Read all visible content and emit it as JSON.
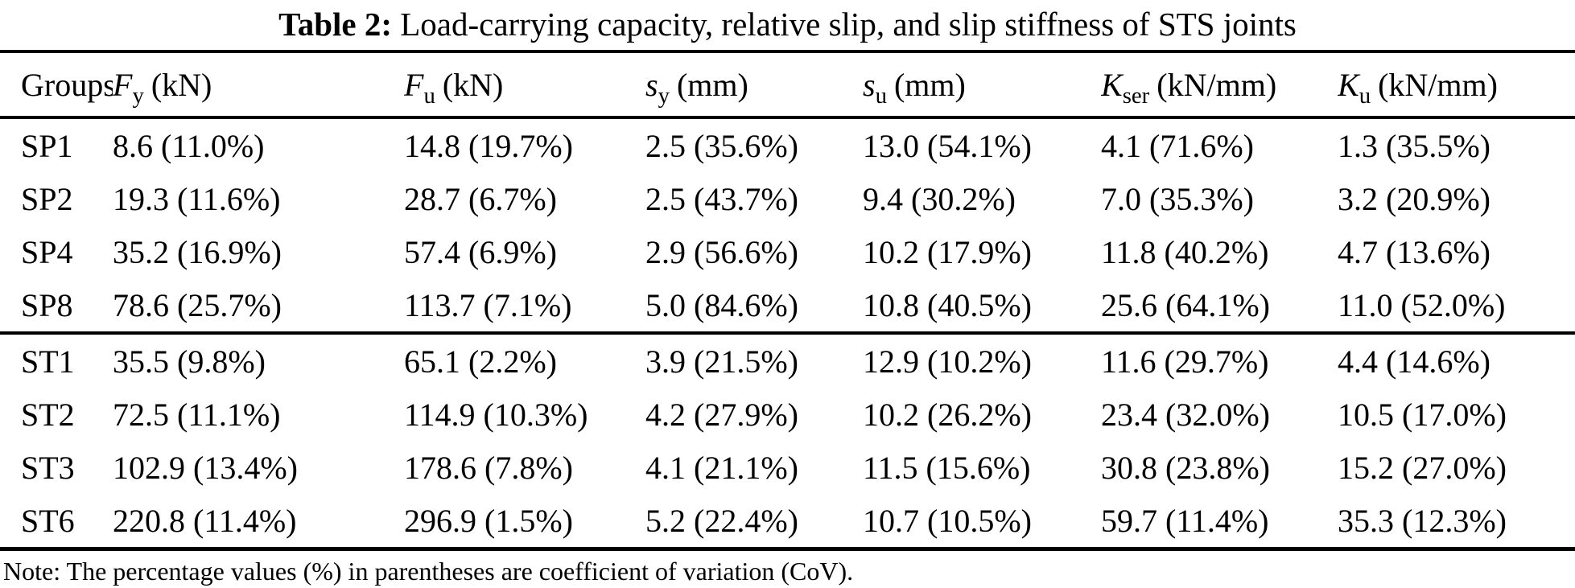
{
  "title": {
    "bold": "Table 2:",
    "rest": "Load-carrying capacity, relative slip, and slip stiffness of STS joints"
  },
  "table": {
    "headers": [
      {
        "label": "Groups"
      },
      {
        "sym": "F",
        "sub": "y",
        "unit": "(kN)"
      },
      {
        "sym": "F",
        "sub": "u",
        "unit": "(kN)"
      },
      {
        "sym": "s",
        "sub": "y",
        "unit": "(mm)"
      },
      {
        "sym": "s",
        "sub": "u",
        "unit": "(mm)"
      },
      {
        "sym": "K",
        "sub": "ser",
        "unit": "(kN/mm)"
      },
      {
        "sym": "K",
        "sub": "u",
        "unit": "(kN/mm)"
      }
    ],
    "rows": [
      {
        "group": "SP1",
        "cells": [
          "8.6 (11.0%)",
          "14.8 (19.7%)",
          "2.5 (35.6%)",
          "13.0 (54.1%)",
          "4.1 (71.6%)",
          "1.3 (35.5%)"
        ]
      },
      {
        "group": "SP2",
        "cells": [
          "19.3 (11.6%)",
          "28.7 (6.7%)",
          "2.5 (43.7%)",
          "9.4 (30.2%)",
          "7.0 (35.3%)",
          "3.2 (20.9%)"
        ]
      },
      {
        "group": "SP4",
        "cells": [
          "35.2 (16.9%)",
          "57.4 (6.9%)",
          "2.9 (56.6%)",
          "10.2 (17.9%)",
          "11.8 (40.2%)",
          "4.7 (13.6%)"
        ]
      },
      {
        "group": "SP8",
        "cells": [
          "78.6 (25.7%)",
          "113.7 (7.1%)",
          "5.0 (84.6%)",
          "10.8 (40.5%)",
          "25.6 (64.1%)",
          "11.0 (52.0%)"
        ]
      },
      {
        "group": "ST1",
        "cells": [
          "35.5 (9.8%)",
          "65.1 (2.2%)",
          "3.9 (21.5%)",
          "12.9 (10.2%)",
          "11.6 (29.7%)",
          "4.4 (14.6%)"
        ]
      },
      {
        "group": "ST2",
        "cells": [
          "72.5 (11.1%)",
          "114.9 (10.3%)",
          "4.2 (27.9%)",
          "10.2 (26.2%)",
          "23.4 (32.0%)",
          "10.5 (17.0%)"
        ]
      },
      {
        "group": "ST3",
        "cells": [
          "102.9 (13.4%)",
          "178.6 (7.8%)",
          "4.1 (21.1%)",
          "11.5 (15.6%)",
          "30.8 (23.8%)",
          "15.2 (27.0%)"
        ]
      },
      {
        "group": "ST6",
        "cells": [
          "220.8 (11.4%)",
          "296.9 (1.5%)",
          "5.2 (22.4%)",
          "10.7 (10.5%)",
          "59.7 (11.4%)",
          "35.3 (12.3%)"
        ]
      }
    ]
  },
  "note": "Note: The percentage values (%) in parentheses are coefficient of variation (CoV)."
}
